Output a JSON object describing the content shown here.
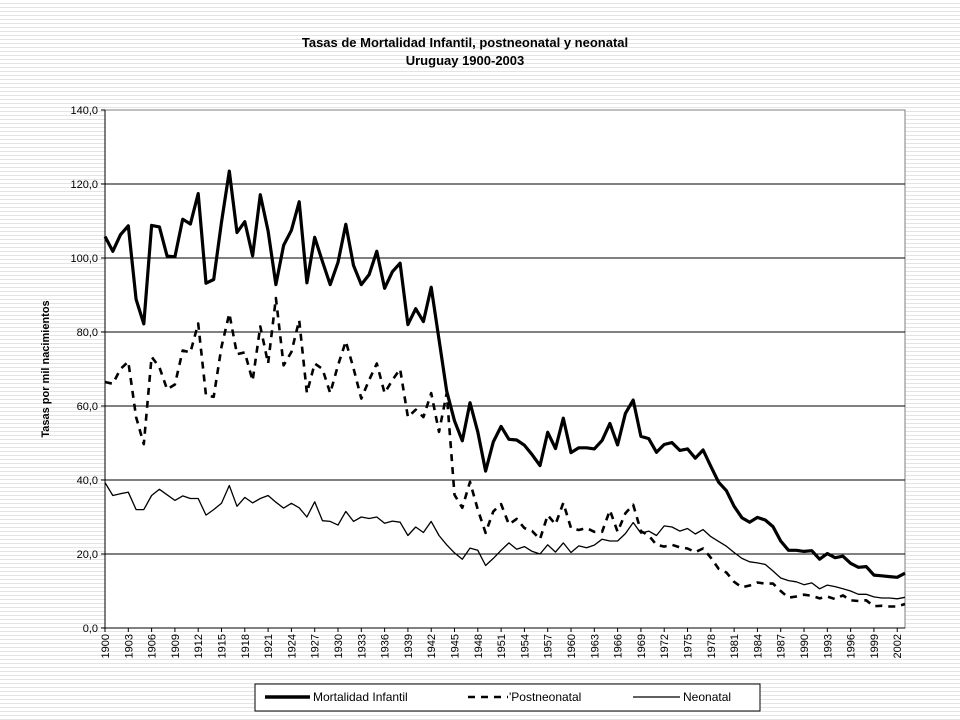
{
  "chart_data": {
    "type": "line",
    "title": "Tasas de Mortalidad Infantil, postneonatal y neonatal",
    "subtitle": "Uruguay 1900-2003",
    "xlabel": "",
    "ylabel": "Tasas por mil nacimientos",
    "ylim": [
      0,
      140
    ],
    "yticks": [
      "0,0",
      "20,0",
      "40,0",
      "60,0",
      "80,0",
      "100,0",
      "120,0",
      "140,0"
    ],
    "xlim": [
      1900,
      2003
    ],
    "xticks": [
      "1900",
      "1903",
      "1906",
      "1909",
      "1912",
      "1915",
      "1918",
      "1921",
      "1924",
      "1927",
      "1930",
      "1933",
      "1936",
      "1939",
      "1942",
      "1945",
      "1948",
      "1951",
      "1954",
      "1957",
      "1960",
      "1963",
      "1966",
      "1969",
      "1972",
      "1975",
      "1978",
      "1981",
      "1984",
      "1987",
      "1990",
      "1993",
      "1996",
      "1999",
      "2002"
    ],
    "grid": true,
    "legend_position": "bottom",
    "legend_labels": [
      "Mortalidad Infantil",
      "'Postneonatal",
      "Neonatal"
    ],
    "x": [
      1900,
      1901,
      1902,
      1903,
      1904,
      1905,
      1906,
      1907,
      1908,
      1909,
      1910,
      1911,
      1912,
      1913,
      1914,
      1915,
      1916,
      1917,
      1918,
      1919,
      1920,
      1921,
      1922,
      1923,
      1924,
      1925,
      1926,
      1927,
      1928,
      1929,
      1930,
      1931,
      1932,
      1933,
      1934,
      1935,
      1936,
      1937,
      1938,
      1939,
      1940,
      1941,
      1942,
      1943,
      1944,
      1945,
      1946,
      1947,
      1948,
      1949,
      1950,
      1951,
      1952,
      1953,
      1954,
      1955,
      1956,
      1957,
      1958,
      1959,
      1960,
      1961,
      1962,
      1963,
      1964,
      1965,
      1966,
      1967,
      1968,
      1969,
      1970,
      1971,
      1972,
      1973,
      1974,
      1975,
      1976,
      1977,
      1978,
      1979,
      1980,
      1981,
      1982,
      1983,
      1984,
      1985,
      1986,
      1987,
      1988,
      1989,
      1990,
      1991,
      1992,
      1993,
      1994,
      1995,
      1996,
      1997,
      1998,
      1999,
      2000,
      2001,
      2002,
      2003
    ],
    "series": [
      {
        "name": "Mortalidad Infantil",
        "color": "#000000",
        "style": "solid-thick",
        "values": [
          105.8,
          101.8,
          106.3,
          108.7,
          88.8,
          82.2,
          108.8,
          108.4,
          100.5,
          100.3,
          110.5,
          109.2,
          117.4,
          93.2,
          94.2,
          109.7,
          123.5,
          106.9,
          109.8,
          100.6,
          117.1,
          107.3,
          92.8,
          103.4,
          107.5,
          115.2,
          93.3,
          105.6,
          99.0,
          92.8,
          98.8,
          109.1,
          98.0,
          92.8,
          95.5,
          101.8,
          91.8,
          96.3,
          98.6,
          82.0,
          86.3,
          82.8,
          92.1,
          78.0,
          64.0,
          56.0,
          50.6,
          60.9,
          53.0,
          42.4,
          50.3,
          54.5,
          51.0,
          50.8,
          49.4,
          46.8,
          43.9,
          52.9,
          48.5,
          56.7,
          47.4,
          48.7,
          48.7,
          48.4,
          50.7,
          55.3,
          49.5,
          58.0,
          61.6,
          51.8,
          51.2,
          47.5,
          49.6,
          50.1,
          48.0,
          48.4,
          45.9,
          48.1,
          43.7,
          39.4,
          37.1,
          32.9,
          29.8,
          28.6,
          29.9,
          29.2,
          27.4,
          23.5,
          21.0,
          21.0,
          20.7,
          20.9,
          18.6,
          20.1,
          19.0,
          19.4,
          17.5,
          16.4,
          16.6,
          14.3,
          14.1,
          13.9,
          13.7,
          14.8
        ]
      },
      {
        "name": "'Postneonatal",
        "color": "#000000",
        "style": "dashed",
        "values": [
          66.5,
          66.0,
          70.0,
          72.0,
          57.0,
          49.7,
          73.3,
          70.5,
          64.5,
          65.8,
          75.0,
          74.5,
          82.3,
          62.8,
          62.5,
          76.0,
          85.0,
          74.0,
          74.5,
          66.8,
          81.5,
          71.5,
          89.2,
          71.0,
          74.6,
          83.2,
          63.5,
          71.5,
          70.0,
          63.5,
          71.0,
          77.5,
          70.2,
          62.0,
          67.0,
          71.5,
          63.5,
          67.0,
          70.0,
          57.0,
          59.0,
          57.0,
          63.5,
          53.0,
          63.5,
          36.0,
          32.5,
          39.5,
          32.0,
          25.7,
          31.5,
          33.5,
          28.0,
          29.5,
          27.0,
          26.2,
          24.0,
          30.5,
          28.0,
          33.8,
          27.0,
          26.5,
          27.0,
          26.0,
          26.0,
          31.8,
          26.0,
          31.0,
          33.3,
          26.2,
          25.0,
          22.5,
          22.0,
          22.5,
          21.8,
          21.5,
          20.5,
          21.5,
          19.0,
          16.0,
          15.0,
          12.5,
          11.0,
          11.5,
          12.3,
          12.0,
          12.0,
          10.0,
          8.2,
          8.5,
          9.0,
          8.7,
          8.0,
          8.5,
          7.8,
          8.8,
          7.5,
          7.3,
          7.5,
          5.9,
          6.0,
          5.8,
          5.8,
          6.5
        ]
      },
      {
        "name": "Neonatal",
        "color": "#000000",
        "style": "solid-thin",
        "values": [
          39.3,
          35.8,
          36.3,
          36.7,
          32.0,
          32.0,
          35.8,
          37.5,
          36.0,
          34.5,
          35.7,
          35.0,
          35.0,
          30.5,
          32.0,
          33.7,
          38.5,
          32.9,
          35.3,
          33.8,
          35.0,
          35.8,
          34.0,
          32.4,
          33.7,
          32.5,
          30.0,
          34.1,
          29.0,
          28.8,
          27.8,
          31.5,
          28.8,
          30.0,
          29.6,
          30.0,
          28.3,
          28.9,
          28.6,
          25.0,
          27.3,
          25.8,
          28.8,
          25.0,
          22.5,
          20.3,
          18.6,
          21.6,
          21.0,
          16.9,
          18.8,
          21.0,
          23.0,
          21.3,
          22.0,
          20.7,
          20.0,
          22.5,
          20.5,
          23.0,
          20.4,
          22.2,
          21.7,
          22.4,
          24.0,
          23.5,
          23.5,
          25.5,
          28.5,
          25.6,
          26.2,
          25.0,
          27.6,
          27.3,
          26.2,
          26.9,
          25.4,
          26.6,
          24.7,
          23.4,
          22.1,
          20.4,
          18.8,
          17.9,
          17.6,
          17.2,
          15.4,
          13.5,
          12.8,
          12.5,
          11.7,
          12.2,
          10.6,
          11.6,
          11.2,
          10.6,
          10.0,
          9.1,
          9.1,
          8.4,
          8.1,
          8.1,
          7.9,
          8.3
        ]
      }
    ]
  }
}
